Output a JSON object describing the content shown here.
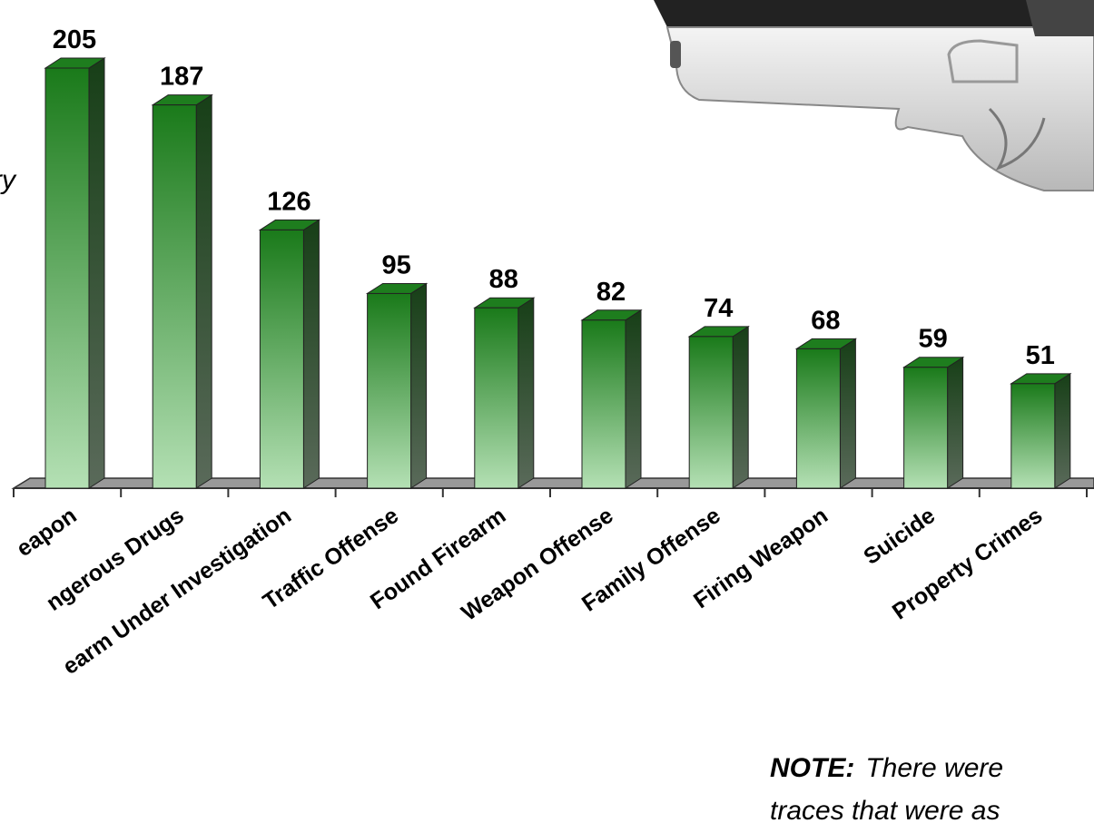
{
  "chart_data": {
    "type": "bar3d",
    "y_label": "ry",
    "categories": [
      "eapon",
      "ngerous Drugs",
      "earm Under Investigation",
      "Traffic Offense",
      "Found Firearm",
      "Weapon Offense",
      "Family Offense",
      "Firing Weapon",
      "Suicide",
      "Property Crimes"
    ],
    "values": [
      205,
      187,
      126,
      95,
      88,
      82,
      74,
      68,
      59,
      51
    ],
    "color": "#1e7d1e",
    "note": {
      "label": "NOTE:",
      "lines": [
        "There were",
        "traces that were as"
      ]
    }
  }
}
